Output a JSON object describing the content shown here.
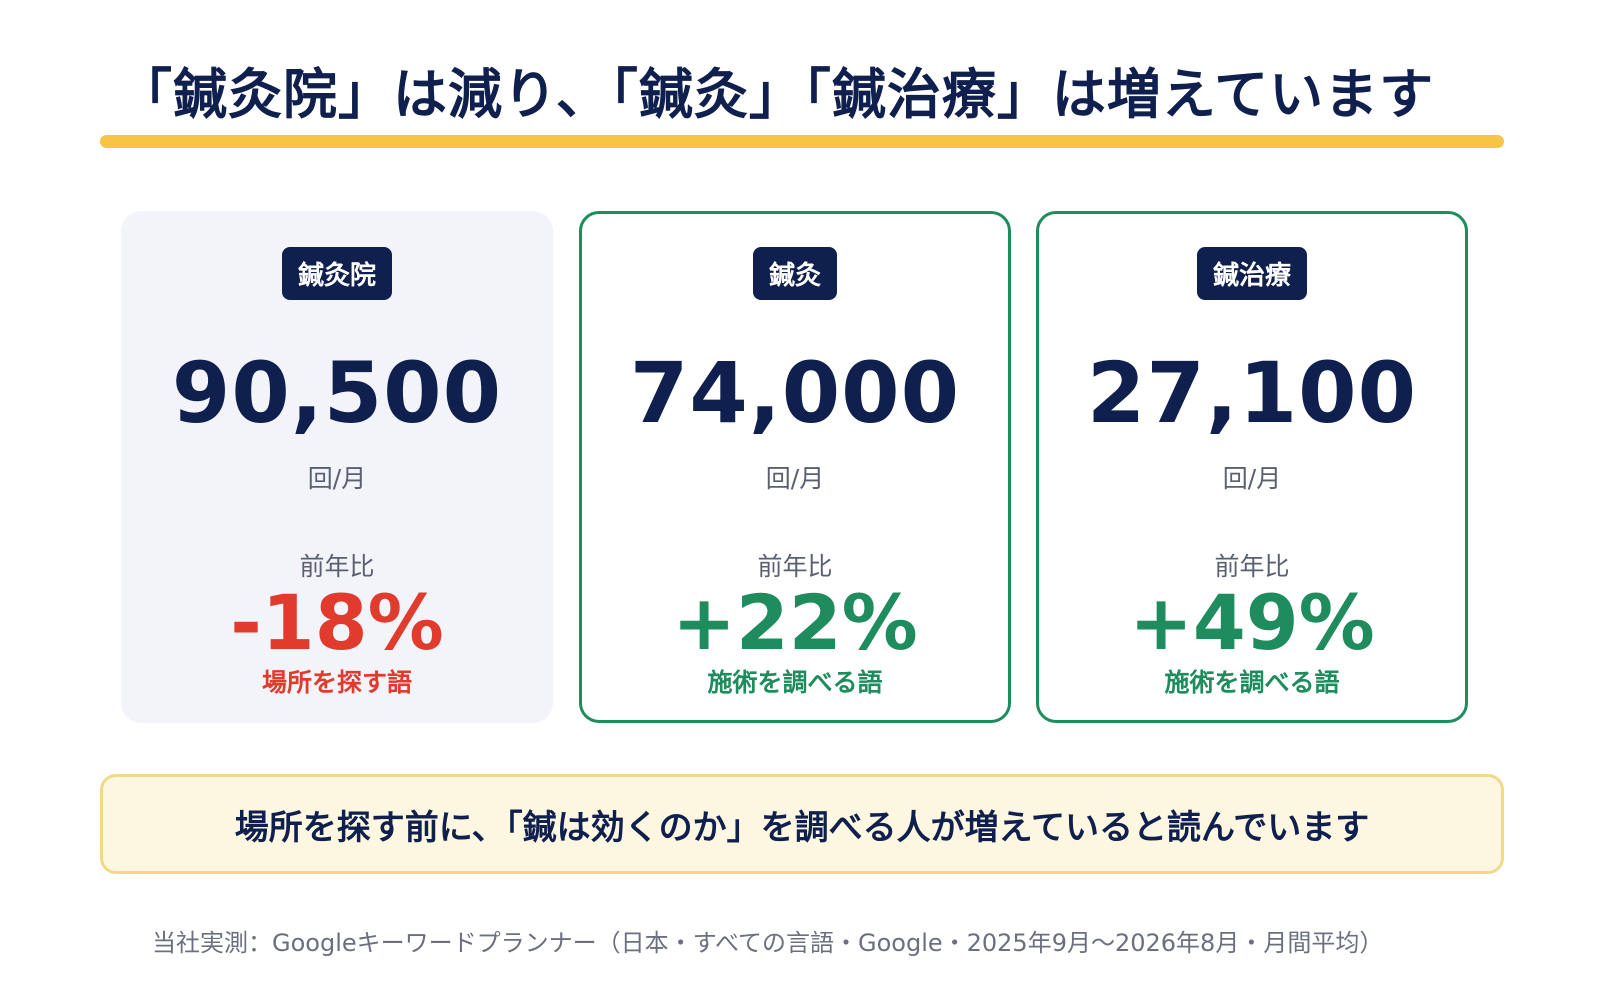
{
  "headline": "「鍼灸院」は減り、「鍼灸」「鍼治療」は増えています",
  "colors": {
    "navy": "#0f1f4e",
    "accent_yellow": "#f7c443",
    "negative_red": "#e03b2d",
    "positive_green": "#1e8c5c",
    "card_neutral_bg": "#f3f4fa",
    "callout_bg": "#fdf7e1"
  },
  "chart_data": {
    "type": "table",
    "title": "「鍼灸院」は減り、「鍼灸」「鍼治療」は増えています",
    "columns": [
      "keyword",
      "monthly_searches",
      "unit",
      "yoy_label",
      "yoy_change",
      "intent"
    ],
    "rows": [
      {
        "keyword": "鍼灸院",
        "monthly_searches": 90500,
        "monthly_searches_text": "90,500",
        "unit": "回/月",
        "yoy_label": "前年比",
        "yoy_change": -18,
        "yoy_text": "-18%",
        "intent": "場所を探す語"
      },
      {
        "keyword": "鍼灸",
        "monthly_searches": 74000,
        "monthly_searches_text": "74,000",
        "unit": "回/月",
        "yoy_label": "前年比",
        "yoy_change": 22,
        "yoy_text": "+22%",
        "intent": "施術を調べる語"
      },
      {
        "keyword": "鍼治療",
        "monthly_searches": 27100,
        "monthly_searches_text": "27,100",
        "unit": "回/月",
        "yoy_label": "前年比",
        "yoy_change": 49,
        "yoy_text": "+49%",
        "intent": "施術を調べる語"
      }
    ]
  },
  "callout": "場所を探す前に、「鍼は効くのか」を調べる人が増えていると読んでいます",
  "source": "当社実測：Googleキーワードプランナー（日本・すべての言語・Google・2025年9月〜2026年8月・月間平均）"
}
